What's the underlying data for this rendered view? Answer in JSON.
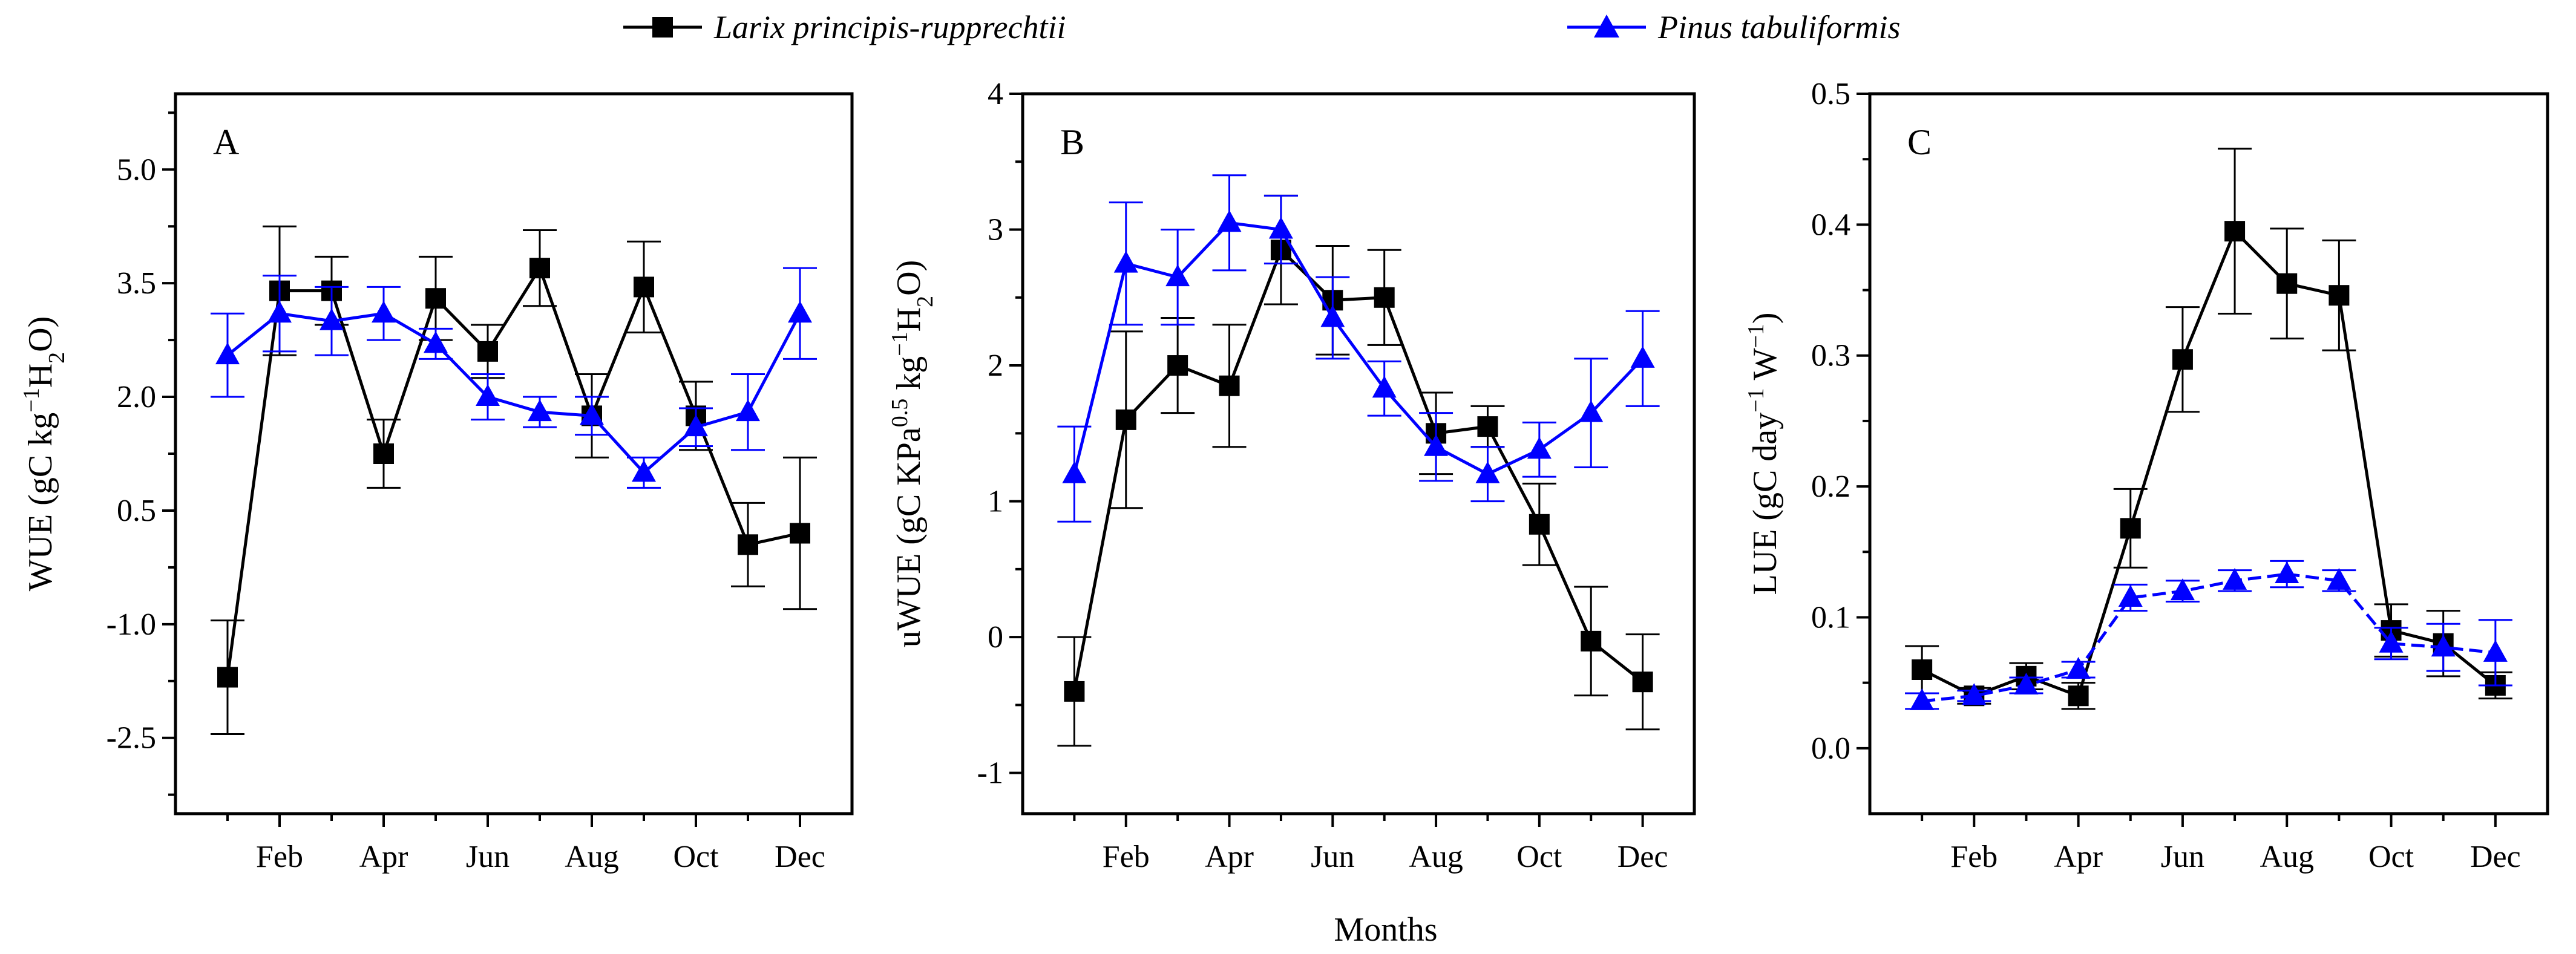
{
  "xlabel": "Months",
  "legend": {
    "placement": "top-center",
    "entries": [
      {
        "name": "Larix principis-rupprechtii",
        "color": "#000000",
        "marker": "square"
      },
      {
        "name": "Pinus tabuliformis",
        "color": "#0000ff",
        "marker": "triangle"
      }
    ]
  },
  "chart_data": [
    {
      "type": "line",
      "panel": "A",
      "ylabel": "WUE (gC kg⁻¹H₂O)",
      "ylabel_parts": {
        "pre": "WUE (gC kg",
        "sup": "−1",
        "mid": "H",
        "sub": "2",
        "post": "O)"
      },
      "ylim": [
        -3.5,
        6.0
      ],
      "yticks": [
        -2.5,
        -1.0,
        0.5,
        2.0,
        3.5,
        5.0
      ],
      "ytick_labels": [
        "-2.5",
        "-1.0",
        "0.5",
        "2.0",
        "3.5",
        "5.0"
      ],
      "xlim": [
        0,
        13
      ],
      "xtick_labels": [
        "Feb",
        "Apr",
        "Jun",
        "Aug",
        "Oct",
        "Dec"
      ],
      "xtick_positions": [
        2,
        4,
        6,
        8,
        10,
        12
      ],
      "x": [
        1,
        2,
        3,
        4,
        5,
        6,
        7,
        8,
        9,
        10,
        11,
        12
      ],
      "series": [
        {
          "name": "Larix principis-rupprechtii",
          "values": [
            -1.7,
            3.4,
            3.4,
            1.25,
            3.3,
            2.6,
            3.7,
            1.75,
            3.45,
            1.75,
            0.05,
            0.2
          ],
          "errors": [
            0.75,
            0.85,
            0.45,
            0.45,
            0.55,
            0.35,
            0.5,
            0.55,
            0.6,
            0.45,
            0.55,
            1.0
          ]
        },
        {
          "name": "Pinus tabuliformis",
          "values": [
            2.55,
            3.1,
            3.0,
            3.1,
            2.7,
            2.0,
            1.8,
            1.75,
            1.0,
            1.6,
            1.8,
            3.1
          ],
          "errors": [
            0.55,
            0.5,
            0.45,
            0.35,
            0.2,
            0.3,
            0.2,
            0.25,
            0.2,
            0.25,
            0.5,
            0.6
          ]
        }
      ]
    },
    {
      "type": "line",
      "panel": "B",
      "ylabel": "uWUE (gC KPa⁰·⁵ kg⁻¹H₂O)",
      "ylabel_parts": {
        "pre": "uWUE (gC KPa",
        "sup1": "0.5",
        "mid1": " kg",
        "sup2": "−1",
        "mid2": "H",
        "sub": "2",
        "post": "O)"
      },
      "ylim": [
        -1.3,
        4.0
      ],
      "yticks": [
        -1,
        0,
        1,
        2,
        3,
        4
      ],
      "ytick_labels": [
        "-1",
        "0",
        "1",
        "2",
        "3",
        "4"
      ],
      "xlim": [
        0,
        13
      ],
      "xtick_labels": [
        "Feb",
        "Apr",
        "Jun",
        "Aug",
        "Oct",
        "Dec"
      ],
      "xtick_positions": [
        2,
        4,
        6,
        8,
        10,
        12
      ],
      "x": [
        1,
        2,
        3,
        4,
        5,
        6,
        7,
        8,
        9,
        10,
        11,
        12
      ],
      "series": [
        {
          "name": "Larix principis-rupprechtii",
          "values": [
            -0.4,
            1.6,
            2.0,
            1.85,
            2.85,
            2.48,
            2.5,
            1.5,
            1.55,
            0.83,
            -0.03,
            -0.33
          ],
          "errors": [
            0.4,
            0.65,
            0.35,
            0.45,
            0.4,
            0.4,
            0.35,
            0.3,
            0.15,
            0.3,
            0.4,
            0.35
          ]
        },
        {
          "name": "Pinus tabuliformis",
          "values": [
            1.2,
            2.75,
            2.65,
            3.05,
            3.0,
            2.35,
            1.83,
            1.4,
            1.2,
            1.38,
            1.65,
            2.05
          ],
          "errors": [
            0.35,
            0.45,
            0.35,
            0.35,
            0.25,
            0.3,
            0.2,
            0.25,
            0.2,
            0.2,
            0.4,
            0.35
          ]
        }
      ]
    },
    {
      "type": "line",
      "panel": "C",
      "ylabel": "LUE (gC day⁻¹ W⁻¹)",
      "ylabel_parts": {
        "pre": "LUE (gC day",
        "sup1": "−1",
        "mid": " W",
        "sup2": "−1",
        "post": ")"
      },
      "ylim": [
        -0.05,
        0.5
      ],
      "yticks": [
        0.0,
        0.1,
        0.2,
        0.3,
        0.4,
        0.5
      ],
      "ytick_labels": [
        "0.0",
        "0.1",
        "0.2",
        "0.3",
        "0.4",
        "0.5"
      ],
      "xlim": [
        0,
        13
      ],
      "xtick_labels": [
        "Feb",
        "Apr",
        "Jun",
        "Aug",
        "Oct",
        "Dec"
      ],
      "xtick_positions": [
        2,
        4,
        6,
        8,
        10,
        12
      ],
      "x": [
        1,
        2,
        3,
        4,
        5,
        6,
        7,
        8,
        9,
        10,
        11,
        12
      ],
      "series": [
        {
          "name": "Larix principis-rupprechtii",
          "values": [
            0.06,
            0.04,
            0.055,
            0.04,
            0.168,
            0.297,
            0.395,
            0.355,
            0.346,
            0.09,
            0.08,
            0.048
          ],
          "errors": [
            0.018,
            0.006,
            0.01,
            0.01,
            0.03,
            0.04,
            0.063,
            0.042,
            0.042,
            0.02,
            0.025,
            0.01
          ]
        },
        {
          "name": "Pinus tabuliformis",
          "values": [
            0.036,
            0.04,
            0.048,
            0.06,
            0.115,
            0.12,
            0.128,
            0.133,
            0.128,
            0.08,
            0.077,
            0.073
          ],
          "errors": [
            0.006,
            0.004,
            0.006,
            0.006,
            0.01,
            0.008,
            0.008,
            0.01,
            0.008,
            0.012,
            0.018,
            0.025
          ]
        }
      ]
    }
  ]
}
